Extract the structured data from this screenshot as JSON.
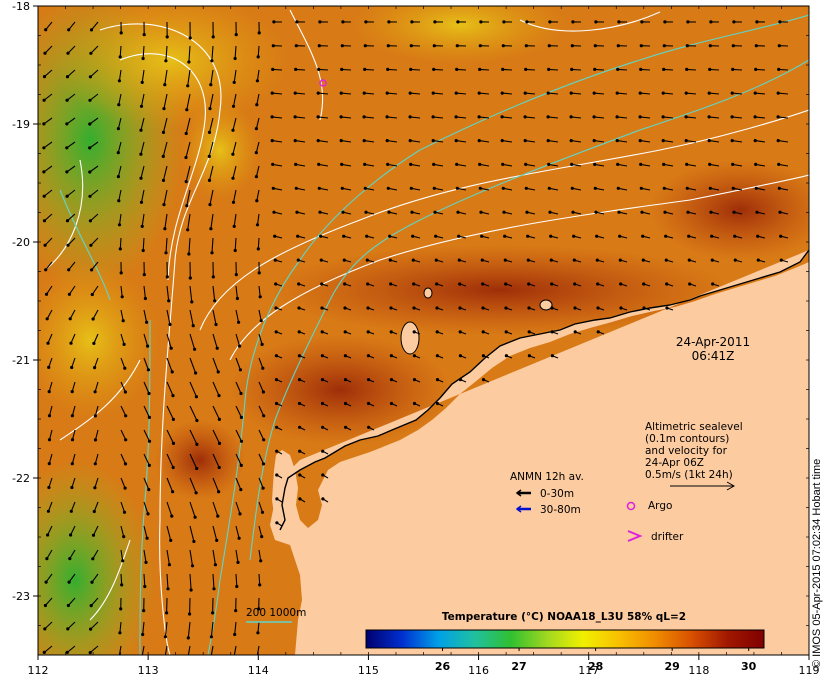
{
  "map": {
    "lon_ticks": [
      "112",
      "113",
      "114",
      "115",
      "116",
      "117",
      "118",
      "119"
    ],
    "lat_ticks": [
      "-18",
      "-19",
      "-20",
      "-21",
      "-22",
      "-23"
    ],
    "lon_range": [
      112,
      119
    ],
    "lat_range": [
      -23.5,
      -18
    ],
    "land_color": "#fdcba0",
    "sea_warm_color": "#d87a16",
    "sea_hot_color": "#a8300a",
    "sea_cool_color": "#4cc41c",
    "contour_color": "#ffffff",
    "isobath_color": "#5fd6c8"
  },
  "date_label": {
    "date": "24-Apr-2011",
    "time": "06:41Z"
  },
  "altimetry_note": {
    "line1": "Altimetric sealevel",
    "line2": "(0.1m contours)",
    "line3": "and velocity for",
    "line4": "24-Apr 06Z",
    "line5": "0.5m/s (1kt 24h)"
  },
  "anmn_legend": {
    "title": "ANMN 12h av.",
    "items": [
      {
        "label": "0-30m",
        "color": "#000000"
      },
      {
        "label": "30-80m",
        "color": "#0010d0"
      }
    ]
  },
  "symbols_legend": {
    "argo_label": "Argo",
    "argo_color": "#e020e0",
    "drifter_label": "drifter",
    "drifter_color": "#e020e0"
  },
  "isobath_legend": {
    "label": "200  1000m"
  },
  "colorbar": {
    "title": "Temperature (°C) NOAA18_L3U 58% qL=2",
    "ticks": [
      "26",
      "27",
      "28",
      "29",
      "30"
    ],
    "range": [
      25.0,
      30.2
    ],
    "stops": [
      "#00006e",
      "#0030d0",
      "#00a0e8",
      "#20c0a0",
      "#30c030",
      "#a0d820",
      "#f0f000",
      "#f8c000",
      "#f08c00",
      "#d85000",
      "#a01800",
      "#800000"
    ]
  },
  "credit": "© IMOS 05-Apr-2015 07:02:34 Hobart time"
}
